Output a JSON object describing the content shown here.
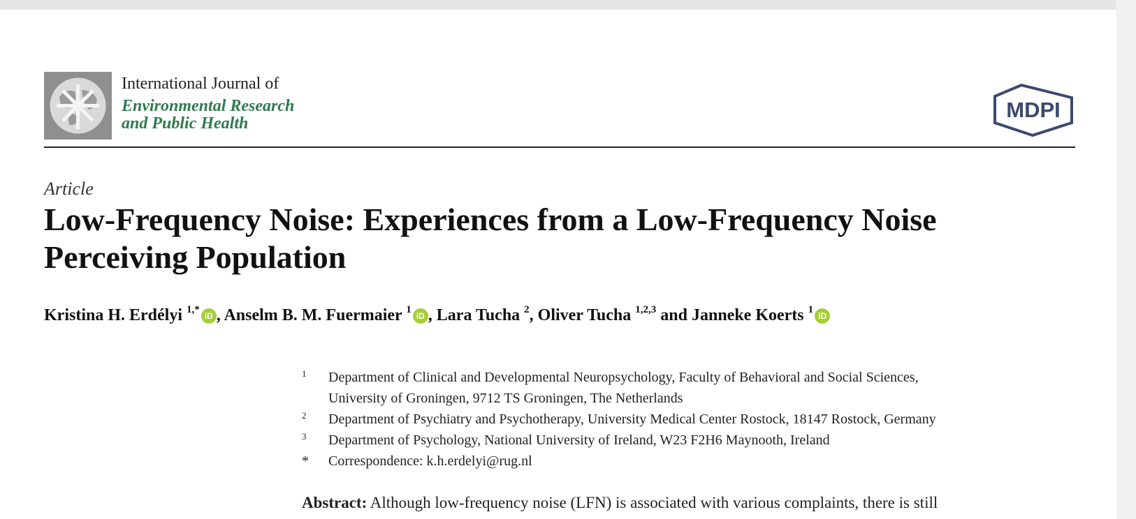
{
  "journal": {
    "line1": "International Journal of",
    "line2": "Environmental Research",
    "line3": "and Public Health"
  },
  "publisher": {
    "logo_text": "MDPI"
  },
  "article": {
    "type": "Article",
    "title": "Low-Frequency Noise: Experiences from a Low-Frequency Noise Perceiving Population"
  },
  "authors": [
    {
      "name": "Kristina H. Erdélyi",
      "sup": "1,*",
      "orcid": true,
      "sep": ", "
    },
    {
      "name": "Anselm B. M. Fuermaier",
      "sup": "1",
      "orcid": true,
      "sep": ", "
    },
    {
      "name": "Lara Tucha",
      "sup": "2",
      "orcid": false,
      "sep": ", "
    },
    {
      "name": "Oliver Tucha",
      "sup": "1,2,3",
      "orcid": false,
      "sep": " and "
    },
    {
      "name": "Janneke Koerts",
      "sup": "1",
      "orcid": true,
      "sep": ""
    }
  ],
  "orcid_icon_label": "iD",
  "affiliations": [
    {
      "mark": "1",
      "lines": [
        "Department of Clinical and Developmental Neuropsychology, Faculty of Behavioral and Social Sciences,",
        "University of Groningen, 9712 TS Groningen, The Netherlands"
      ]
    },
    {
      "mark": "2",
      "lines": [
        "Department of Psychiatry and Psychotherapy, University Medical Center Rostock, 18147 Rostock, Germany"
      ]
    },
    {
      "mark": "3",
      "lines": [
        "Department of Psychology, National University of Ireland, W23 F2H6 Maynooth, Ireland"
      ]
    },
    {
      "mark": "*",
      "lines": [
        "Correspondence: k.h.erdelyi@rug.nl"
      ]
    }
  ],
  "abstract": {
    "label": "Abstract:",
    "text": "Although low-frequency noise (LFN) is associated with various complaints, there is still"
  },
  "colors": {
    "journal_accent": "#2f7a4d",
    "orcid": "#a6ce39",
    "mdpi_blue": "#3b4a6b"
  }
}
